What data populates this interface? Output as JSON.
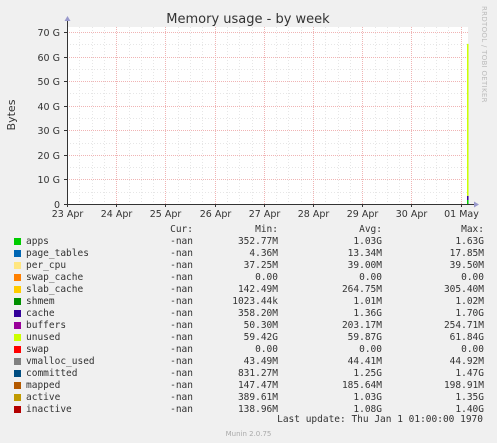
{
  "chart_data": {
    "type": "line",
    "title": "Memory usage - by week",
    "ylabel": "Bytes",
    "y_ticks": [
      "0",
      "10 G",
      "20 G",
      "30 G",
      "40 G",
      "50 G",
      "60 G",
      "70 G"
    ],
    "y_tick_values": [
      0,
      10,
      20,
      30,
      40,
      50,
      60,
      70
    ],
    "ylim": [
      0,
      72
    ],
    "y_unit": "G",
    "x_ticks": [
      "23 Apr",
      "24 Apr",
      "25 Apr",
      "26 Apr",
      "27 Apr",
      "28 Apr",
      "29 Apr",
      "30 Apr",
      "01 May"
    ],
    "xlim_days": [
      0,
      8.15
    ],
    "grid": true,
    "recent_data": {
      "x_start_day": 8.13,
      "stack_gb": [
        {
          "name": "apps",
          "value": 1.63,
          "color": "#00cc00"
        },
        {
          "name": "cache",
          "value": 1.7,
          "color": "#330099"
        },
        {
          "name": "unused",
          "value": 61.8,
          "color": "#ccff00"
        }
      ]
    },
    "columns": [
      "Cur:",
      "Min:",
      "Avg:",
      "Max:"
    ],
    "series": [
      {
        "name": "apps",
        "color": "#00cc00",
        "cur": "-nan",
        "min": "352.77M",
        "avg": "1.03G",
        "max": "1.63G"
      },
      {
        "name": "page_tables",
        "color": "#0066b3",
        "cur": "-nan",
        "min": "4.36M",
        "avg": "13.34M",
        "max": "17.85M"
      },
      {
        "name": "per_cpu",
        "color": "#ffe680",
        "cur": "-nan",
        "min": "37.25M",
        "avg": "39.00M",
        "max": "39.50M"
      },
      {
        "name": "swap_cache",
        "color": "#ff8000",
        "cur": "-nan",
        "min": "0.00",
        "avg": "0.00",
        "max": "0.00"
      },
      {
        "name": "slab_cache",
        "color": "#ffcc00",
        "cur": "-nan",
        "min": "142.49M",
        "avg": "264.75M",
        "max": "305.40M"
      },
      {
        "name": "shmem",
        "color": "#008f00",
        "cur": "-nan",
        "min": "1023.44k",
        "avg": "1.01M",
        "max": "1.02M"
      },
      {
        "name": "cache",
        "color": "#330099",
        "cur": "-nan",
        "min": "358.20M",
        "avg": "1.36G",
        "max": "1.70G"
      },
      {
        "name": "buffers",
        "color": "#990099",
        "cur": "-nan",
        "min": "50.30M",
        "avg": "203.17M",
        "max": "254.71M"
      },
      {
        "name": "unused",
        "color": "#ccff00",
        "cur": "-nan",
        "min": "59.42G",
        "avg": "59.87G",
        "max": "61.84G"
      },
      {
        "name": "swap",
        "color": "#ff0000",
        "cur": "-nan",
        "min": "0.00",
        "avg": "0.00",
        "max": "0.00"
      },
      {
        "name": "vmalloc_used",
        "color": "#808080",
        "cur": "-nan",
        "min": "43.49M",
        "avg": "44.41M",
        "max": "44.92M"
      },
      {
        "name": "committed",
        "color": "#004d80",
        "cur": "-nan",
        "min": "831.27M",
        "avg": "1.25G",
        "max": "1.47G"
      },
      {
        "name": "mapped",
        "color": "#b35900",
        "cur": "-nan",
        "min": "147.47M",
        "avg": "185.64M",
        "max": "198.91M"
      },
      {
        "name": "active",
        "color": "#c09a00",
        "cur": "-nan",
        "min": "389.61M",
        "avg": "1.03G",
        "max": "1.35G"
      },
      {
        "name": "inactive",
        "color": "#b30000",
        "cur": "-nan",
        "min": "138.96M",
        "avg": "1.08G",
        "max": "1.40G"
      }
    ],
    "last_update": "Last update:  Thu Jan  1 01:00:00 1970"
  },
  "footer": "Munin 2.0.75",
  "watermark": "RRDTOOL / TOBI OETIKER",
  "colors": {
    "background": "#f0f0f0",
    "plot_bg": "#ffffff",
    "grid_major": "#f0b4b4",
    "grid_minor": "#e6e6e6",
    "axis": "#333333"
  }
}
